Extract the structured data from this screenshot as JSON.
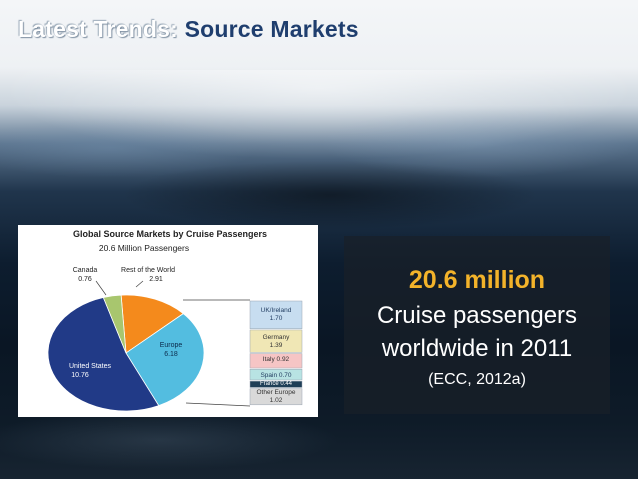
{
  "slide": {
    "title_prefix": "Latest Trends:",
    "title_main": "Source Markets"
  },
  "stats": {
    "highlight": "20.6 million",
    "line1": "Cruise passengers",
    "line2": "worldwide in 2011",
    "source": "(ECC, 2012a)"
  },
  "chart_data": {
    "type": "pie",
    "title": "Global Source Markets by Cruise Passengers",
    "subtitle": "20.6 Million Passengers",
    "slices": [
      {
        "label": "United States",
        "value": 10.76,
        "color": "#213a87"
      },
      {
        "label": "Europe",
        "value": 6.18,
        "color": "#53bde0"
      },
      {
        "label": "Rest of the World",
        "value": 2.91,
        "color": "#f48a1c"
      },
      {
        "label": "Canada",
        "value": 0.76,
        "color": "#a8c66e"
      }
    ],
    "europe_breakdown": [
      {
        "label": "UK/Ireland",
        "value": 1.7,
        "color": "#c7ddf0"
      },
      {
        "label": "Germany",
        "value": 1.39,
        "color": "#f0e7b5"
      },
      {
        "label": "Italy",
        "value": 0.92,
        "color": "#f6c5c5"
      },
      {
        "label": "Spain",
        "value": 0.7,
        "color": "#b8e3e3"
      },
      {
        "label": "France",
        "value": 0.44,
        "color": "#1f3f57"
      },
      {
        "label": "Other Europe",
        "value": 1.02,
        "color": "#d9d9d9"
      }
    ],
    "labels": {
      "canada_name": "Canada",
      "canada_value": "0.76",
      "row_name": "Rest of the World",
      "row_value": "2.91",
      "europe_name": "Europe",
      "europe_value": "6.18",
      "us_name": "United States",
      "us_value": "10.76",
      "uk_name": "UK/Ireland",
      "uk_value": "1.70",
      "germany_name": "Germany",
      "germany_value": "1.39",
      "italy": "Italy 0.92",
      "spain": "Spain 0.70",
      "france": "France 0.44",
      "other_name": "Other Europe",
      "other_value": "1.02"
    }
  }
}
